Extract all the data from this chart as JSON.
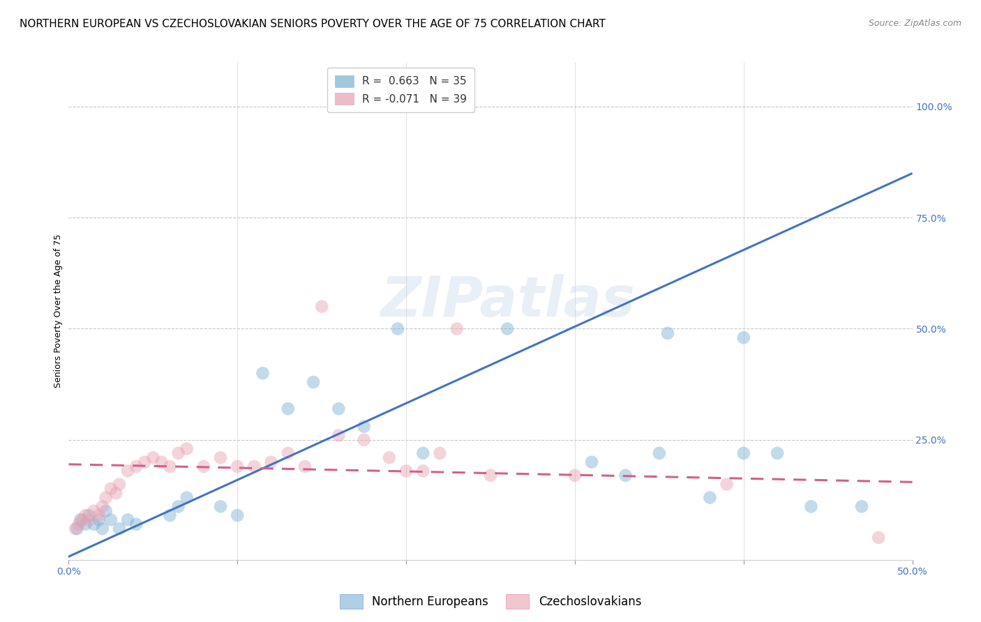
{
  "title": "NORTHERN EUROPEAN VS CZECHOSLOVAKIAN SENIORS POVERTY OVER THE AGE OF 75 CORRELATION CHART",
  "source": "Source: ZipAtlas.com",
  "ylabel": "Seniors Poverty Over the Age of 75",
  "xlim": [
    0.0,
    0.5
  ],
  "ylim": [
    -0.02,
    1.1
  ],
  "blue_color": "#7bafd4",
  "pink_color": "#e8a0b0",
  "blue_line_color": "#4472c4",
  "pink_line_color": "#d45f8a",
  "watermark": "ZIPatlas",
  "legend_r_blue": "R =  0.663",
  "legend_n_blue": "N = 35",
  "legend_r_pink": "R = -0.071",
  "legend_n_pink": "N = 39",
  "blue_scatter_x": [
    0.005,
    0.007,
    0.01,
    0.012,
    0.015,
    0.018,
    0.02,
    0.022,
    0.025,
    0.03,
    0.035,
    0.04,
    0.06,
    0.065,
    0.07,
    0.09,
    0.1,
    0.115,
    0.13,
    0.145,
    0.16,
    0.175,
    0.195,
    0.21,
    0.26,
    0.31,
    0.33,
    0.35,
    0.38,
    0.4,
    0.42,
    0.44,
    0.47,
    0.355,
    0.4
  ],
  "blue_scatter_y": [
    0.05,
    0.07,
    0.06,
    0.08,
    0.06,
    0.07,
    0.05,
    0.09,
    0.07,
    0.05,
    0.07,
    0.06,
    0.08,
    0.1,
    0.12,
    0.1,
    0.08,
    0.4,
    0.32,
    0.38,
    0.32,
    0.28,
    0.5,
    0.22,
    0.5,
    0.2,
    0.17,
    0.22,
    0.12,
    0.22,
    0.22,
    0.1,
    0.1,
    0.49,
    0.48
  ],
  "pink_scatter_x": [
    0.004,
    0.006,
    0.008,
    0.01,
    0.012,
    0.015,
    0.018,
    0.02,
    0.022,
    0.025,
    0.028,
    0.03,
    0.035,
    0.04,
    0.045,
    0.05,
    0.055,
    0.06,
    0.065,
    0.07,
    0.08,
    0.09,
    0.1,
    0.11,
    0.12,
    0.13,
    0.14,
    0.15,
    0.16,
    0.175,
    0.19,
    0.2,
    0.21,
    0.22,
    0.23,
    0.25,
    0.3,
    0.39,
    0.48
  ],
  "pink_scatter_y": [
    0.05,
    0.06,
    0.07,
    0.08,
    0.07,
    0.09,
    0.08,
    0.1,
    0.12,
    0.14,
    0.13,
    0.15,
    0.18,
    0.19,
    0.2,
    0.21,
    0.2,
    0.19,
    0.22,
    0.23,
    0.19,
    0.21,
    0.19,
    0.19,
    0.2,
    0.22,
    0.19,
    0.55,
    0.26,
    0.25,
    0.21,
    0.18,
    0.18,
    0.22,
    0.5,
    0.17,
    0.17,
    0.15,
    0.03
  ],
  "blue_line_x0": -0.01,
  "blue_line_y0": -0.03,
  "blue_line_x1": 0.5,
  "blue_line_y1": 0.85,
  "pink_line_x0": 0.0,
  "pink_line_y0": 0.195,
  "pink_line_x1": 0.5,
  "pink_line_y1": 0.155,
  "background_color": "#ffffff",
  "grid_color": "#c8c8c8",
  "title_fontsize": 11,
  "axis_label_fontsize": 9,
  "tick_fontsize": 10,
  "legend_fontsize": 11,
  "scatter_size": 180,
  "scatter_alpha": 0.45,
  "legend_label_blue": "Northern Europeans",
  "legend_label_pink": "Czechoslovakians"
}
